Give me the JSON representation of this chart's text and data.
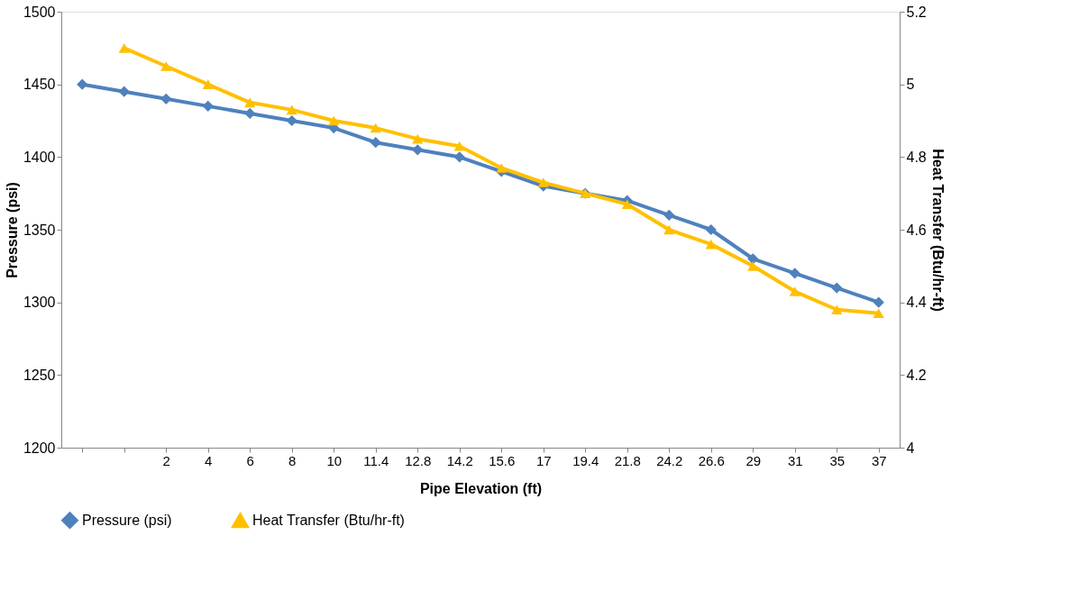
{
  "chart_data": {
    "type": "line",
    "xlabel": "Pipe Elevation (ft)",
    "ylabel": "Pressure (psi)",
    "y2label": "Heat Transfer (Btu/hr-ft)",
    "categories": [
      null,
      null,
      "2",
      "4",
      "6",
      "8",
      "10",
      "11.4",
      "12.8",
      "14.2",
      "15.6",
      "17",
      "19.4",
      "21.8",
      "24.2",
      "26.6",
      "29",
      "31",
      "35",
      "37"
    ],
    "series": [
      {
        "name": "Pressure (psi)",
        "color": "#4f81bd",
        "marker": "diamond",
        "values": [
          1450,
          1445,
          1440,
          1435,
          1430,
          1425,
          1420,
          1410,
          1405,
          1400,
          1390,
          1380,
          1375,
          1370,
          1360,
          1350,
          1330,
          1320,
          1310,
          1300
        ]
      },
      {
        "name": "Heat Transfer (Btu/hr-ft)",
        "color": "#ffc000",
        "marker": "triangle",
        "axis": "y2",
        "values": [
          null,
          5.1,
          5.05,
          5.0,
          4.95,
          4.93,
          4.9,
          4.88,
          4.85,
          4.83,
          4.77,
          4.73,
          4.7,
          4.67,
          4.6,
          4.56,
          4.5,
          4.43,
          4.38,
          4.37
        ]
      }
    ],
    "ylim": [
      1200,
      1500
    ],
    "yticks": [
      1200,
      1250,
      1300,
      1350,
      1400,
      1450,
      1500
    ],
    "y2lim": [
      4,
      5.2
    ],
    "y2ticks": [
      4,
      4.2,
      4.4,
      4.6,
      4.8,
      5,
      5.2
    ],
    "grid": false,
    "legend": "bottom"
  }
}
